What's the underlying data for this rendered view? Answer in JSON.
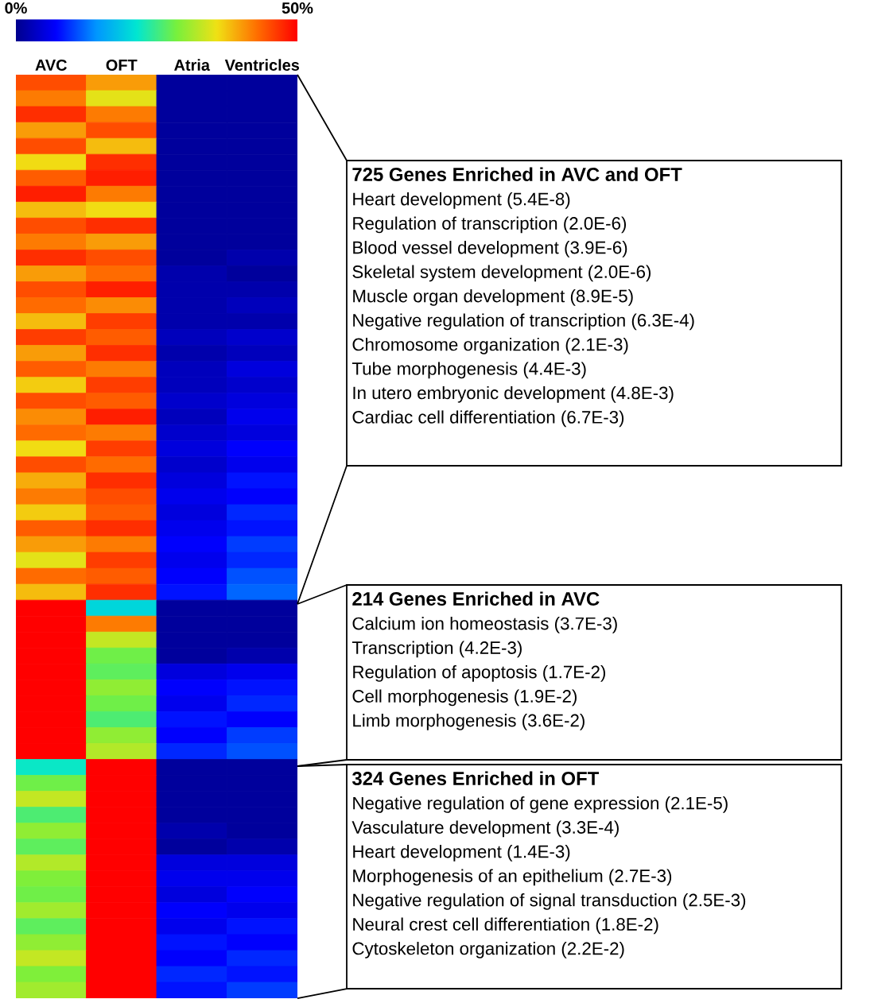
{
  "chart_data": {
    "type": "heatmap",
    "categories": [
      "AVC",
      "OFT",
      "Atria",
      "Ventricles"
    ],
    "y_categories": [
      null,
      null,
      null,
      null,
      null,
      null,
      null,
      null,
      null,
      null,
      null,
      null,
      null,
      null,
      null,
      null,
      null,
      null,
      null,
      null,
      null,
      null,
      null,
      null,
      null,
      null,
      null,
      null,
      null,
      null,
      null,
      null,
      null,
      null,
      null,
      null,
      null,
      null,
      null,
      null,
      null,
      null,
      null,
      null,
      null,
      null,
      null,
      null,
      null,
      null,
      null,
      null,
      null,
      null,
      null,
      null,
      null,
      null
    ],
    "cells": [
      [
        45,
        40,
        1,
        1
      ],
      [
        42,
        35,
        1,
        1
      ],
      [
        47,
        42,
        1,
        1
      ],
      [
        40,
        45,
        1,
        1
      ],
      [
        45,
        38,
        1,
        1
      ],
      [
        36,
        47,
        1,
        1
      ],
      [
        44,
        48,
        1,
        1
      ],
      [
        48,
        42,
        1,
        1
      ],
      [
        38,
        36,
        1,
        1
      ],
      [
        45,
        47,
        1,
        1
      ],
      [
        42,
        40,
        1,
        1
      ],
      [
        47,
        45,
        1,
        2
      ],
      [
        40,
        43,
        2,
        1
      ],
      [
        45,
        48,
        2,
        2
      ],
      [
        43,
        41,
        2,
        3
      ],
      [
        38,
        46,
        2,
        2
      ],
      [
        46,
        44,
        3,
        4
      ],
      [
        40,
        47,
        2,
        3
      ],
      [
        44,
        42,
        3,
        5
      ],
      [
        37,
        46,
        3,
        4
      ],
      [
        45,
        44,
        4,
        5
      ],
      [
        41,
        48,
        3,
        6
      ],
      [
        43,
        42,
        4,
        5
      ],
      [
        36,
        46,
        5,
        7
      ],
      [
        45,
        43,
        4,
        6
      ],
      [
        39,
        47,
        5,
        8
      ],
      [
        42,
        45,
        6,
        7
      ],
      [
        37,
        44,
        5,
        9
      ],
      [
        44,
        47,
        6,
        8
      ],
      [
        40,
        42,
        7,
        10
      ],
      [
        35,
        46,
        6,
        9
      ],
      [
        43,
        44,
        7,
        11
      ],
      [
        38,
        47,
        8,
        12
      ],
      [
        50,
        20,
        1,
        1
      ],
      [
        50,
        42,
        1,
        1
      ],
      [
        50,
        33,
        1,
        1
      ],
      [
        50,
        28,
        1,
        2
      ],
      [
        50,
        27,
        5,
        6
      ],
      [
        50,
        30,
        7,
        8
      ],
      [
        50,
        28,
        6,
        9
      ],
      [
        50,
        26,
        8,
        7
      ],
      [
        50,
        30,
        7,
        10
      ],
      [
        50,
        32,
        9,
        11
      ],
      [
        22,
        50,
        1,
        1
      ],
      [
        28,
        50,
        1,
        1
      ],
      [
        33,
        50,
        1,
        1
      ],
      [
        26,
        50,
        1,
        1
      ],
      [
        30,
        50,
        2,
        1
      ],
      [
        27,
        50,
        1,
        2
      ],
      [
        32,
        50,
        5,
        5
      ],
      [
        29,
        50,
        6,
        6
      ],
      [
        28,
        50,
        5,
        7
      ],
      [
        31,
        50,
        7,
        6
      ],
      [
        27,
        50,
        6,
        8
      ],
      [
        30,
        50,
        8,
        7
      ],
      [
        33,
        50,
        7,
        9
      ],
      [
        29,
        50,
        9,
        8
      ],
      [
        31,
        50,
        8,
        10
      ]
    ],
    "clim": [
      0,
      50
    ],
    "cticks": [
      {
        "value": 0,
        "label": "0%"
      },
      {
        "value": 50,
        "label": "50%"
      }
    ],
    "tick_labels": "x",
    "annotations": [
      "725 Genes Enriched in AVC and OFT",
      "Heart development (5.4E-8)",
      "Regulation of transcription (2.0E-6)",
      "Blood vessel development (3.9E-6)",
      "Skeletal system development (2.0E-6)",
      "Muscle organ development (8.9E-5)",
      "Negative regulation of transcription (6.3E-4)",
      "Chromosome organization (2.1E-3)",
      "Tube morphogenesis (4.4E-3)",
      "In utero embryonic development (4.8E-3)",
      "Cardiac cell differentiation (6.7E-3)",
      "214 Genes Enriched in AVC",
      "Calcium ion homeostasis (3.7E-3)",
      "Transcription (4.2E-3)",
      "Regulation of apoptosis (1.7E-2)",
      "Cell morphogenesis (1.9E-2)",
      "Limb morphogenesis (3.6E-2)",
      "324 Genes Enriched in OFT",
      "Negative regulation of gene expression (2.1E-5)",
      "Vasculature development (3.3E-4)",
      "Heart development (1.4E-3)",
      "Morphogenesis of an epithelium (2.7E-3)",
      "Negative regulation of signal transduction (2.5E-3)",
      "Neural crest cell differentiation (1.8E-2)",
      "Cytoskeleton organization (2.2E-2)"
    ]
  }
}
